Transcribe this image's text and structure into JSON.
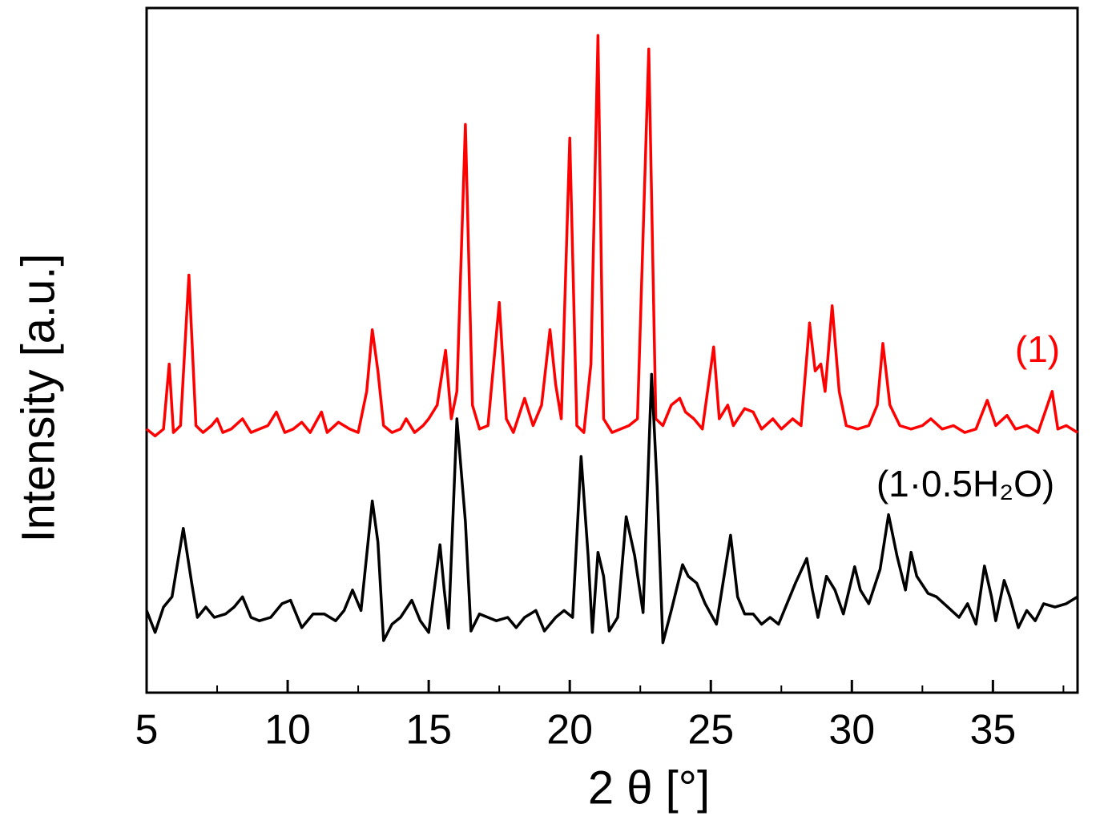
{
  "chart_data": {
    "type": "line",
    "xlabel": "2 θ [°]",
    "ylabel": "Intensity [a.u.]",
    "xlim": [
      5,
      38
    ],
    "xticks": [
      5,
      10,
      15,
      20,
      25,
      30,
      35
    ],
    "xticks_minor": [
      7.5,
      12.5,
      17.5,
      22.5,
      27.5,
      32.5,
      37.5
    ],
    "ylim": [
      0,
      100
    ],
    "series": [
      {
        "name": "(1)",
        "color": "#ff0000",
        "x": [
          5.0,
          5.3,
          5.6,
          5.8,
          5.95,
          6.2,
          6.5,
          6.75,
          7.0,
          7.3,
          7.5,
          7.7,
          8.0,
          8.4,
          8.7,
          9.0,
          9.3,
          9.6,
          9.9,
          10.2,
          10.5,
          10.8,
          11.2,
          11.4,
          11.8,
          12.2,
          12.5,
          12.8,
          13.0,
          13.2,
          13.4,
          13.7,
          14.0,
          14.2,
          14.5,
          14.8,
          15.0,
          15.3,
          15.6,
          15.8,
          16.0,
          16.3,
          16.55,
          16.8,
          17.1,
          17.5,
          17.75,
          18.0,
          18.4,
          18.7,
          19.0,
          19.3,
          19.5,
          19.7,
          20.0,
          20.25,
          20.5,
          20.75,
          21.0,
          21.2,
          21.5,
          21.8,
          22.1,
          22.4,
          22.8,
          23.05,
          23.3,
          23.6,
          23.9,
          24.1,
          24.4,
          24.7,
          25.1,
          25.3,
          25.6,
          25.8,
          26.2,
          26.5,
          26.8,
          27.2,
          27.5,
          27.9,
          28.2,
          28.5,
          28.7,
          28.9,
          29.05,
          29.3,
          29.55,
          29.8,
          30.2,
          30.6,
          30.9,
          31.1,
          31.35,
          31.7,
          32.1,
          32.5,
          32.8,
          33.2,
          33.6,
          34.0,
          34.4,
          34.8,
          35.1,
          35.5,
          35.8,
          36.2,
          36.6,
          37.1,
          37.3,
          37.6,
          38.0
        ],
        "values": [
          38.5,
          37.5,
          38.5,
          48,
          38,
          39,
          61,
          39,
          38,
          39,
          40,
          38,
          38.5,
          40,
          38,
          38.5,
          39,
          41,
          38,
          38.5,
          39.5,
          38,
          41,
          38,
          39.5,
          38.5,
          38,
          44,
          53,
          47,
          39,
          38,
          38.5,
          40,
          38,
          39,
          40,
          42,
          50,
          40,
          44,
          83,
          42,
          38.5,
          39,
          57,
          40,
          38,
          43,
          39,
          42,
          53,
          45,
          40,
          81,
          39,
          38,
          48,
          96,
          40,
          38,
          38.5,
          39,
          40,
          94,
          40,
          39,
          42,
          43,
          41,
          40,
          38.5,
          50.5,
          40,
          42,
          39,
          41.5,
          41,
          38.5,
          40,
          38.5,
          40,
          39,
          54,
          47,
          48,
          44,
          56.5,
          44,
          39,
          38.5,
          39,
          42,
          51,
          42,
          39,
          38.5,
          39,
          40,
          38.5,
          39,
          38,
          38.5,
          42.7,
          39,
          40.5,
          38.5,
          39,
          38,
          44,
          38.5,
          39,
          38
        ]
      },
      {
        "name": "(1·0.5H₂O)",
        "color": "#000000",
        "x": [
          5.0,
          5.3,
          5.6,
          5.9,
          6.3,
          6.6,
          6.8,
          7.1,
          7.4,
          7.8,
          8.1,
          8.4,
          8.7,
          9.0,
          9.4,
          9.8,
          10.1,
          10.5,
          10.9,
          11.3,
          11.7,
          12.0,
          12.3,
          12.6,
          13.0,
          13.2,
          13.4,
          13.7,
          14.0,
          14.4,
          14.7,
          15.0,
          15.4,
          15.55,
          15.7,
          16.0,
          16.3,
          16.5,
          16.8,
          17.1,
          17.4,
          17.8,
          18.1,
          18.4,
          18.8,
          19.1,
          19.5,
          19.8,
          20.1,
          20.4,
          20.65,
          20.8,
          21.0,
          21.2,
          21.4,
          21.7,
          22.0,
          22.3,
          22.6,
          22.9,
          23.1,
          23.3,
          23.6,
          24.0,
          24.2,
          24.5,
          24.8,
          25.2,
          25.7,
          25.95,
          26.2,
          26.5,
          26.8,
          27.1,
          27.4,
          27.7,
          28.0,
          28.4,
          28.6,
          28.8,
          29.1,
          29.4,
          29.7,
          30.1,
          30.3,
          30.6,
          31.0,
          31.3,
          31.6,
          31.9,
          32.1,
          32.3,
          32.7,
          33.0,
          33.4,
          33.8,
          34.1,
          34.4,
          34.7,
          34.95,
          35.1,
          35.4,
          35.6,
          35.9,
          36.2,
          36.5,
          36.8,
          37.2,
          37.6,
          38.0
        ],
        "values": [
          12,
          8.8,
          12.5,
          14,
          24,
          16,
          11,
          12.5,
          11,
          11.5,
          12.5,
          14,
          11,
          10.5,
          11,
          13,
          13.5,
          9.5,
          11.5,
          11.5,
          10.5,
          12,
          15,
          12,
          28,
          22,
          7.6,
          10,
          11,
          13.5,
          10.5,
          8.8,
          21.6,
          15,
          9.4,
          40,
          25,
          9,
          11.5,
          11,
          10.5,
          11,
          9.5,
          11,
          12,
          9,
          11,
          12,
          11,
          34.5,
          20,
          8.8,
          20.5,
          17,
          9,
          11,
          25.7,
          20,
          11.7,
          46.5,
          30,
          7.3,
          12,
          18.7,
          17,
          16,
          13,
          10,
          23,
          14,
          11.5,
          11.5,
          10,
          11,
          10,
          13,
          16,
          19.6,
          15,
          11,
          17,
          15,
          11.5,
          18.4,
          15,
          13,
          18,
          26,
          20,
          15,
          20.5,
          17,
          14.5,
          14,
          12.5,
          11,
          13,
          10,
          18.5,
          14,
          10.5,
          16.4,
          14,
          9.5,
          12,
          10.5,
          13,
          12.5,
          13,
          14
        ]
      }
    ]
  }
}
